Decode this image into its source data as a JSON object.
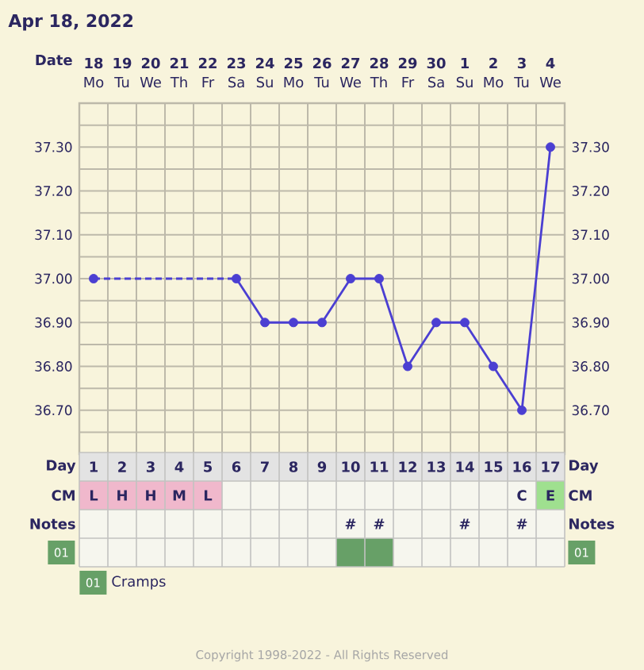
{
  "chart_data": {
    "type": "line",
    "title": "Apr 18, 2022",
    "categories": [
      "18",
      "19",
      "20",
      "21",
      "22",
      "23",
      "24",
      "25",
      "26",
      "27",
      "28",
      "29",
      "30",
      "1",
      "2",
      "3",
      "4"
    ],
    "series": [
      {
        "color": "#4b3fd2",
        "values": [
          37.0,
          null,
          null,
          null,
          null,
          37.0,
          36.9,
          36.9,
          36.9,
          37.0,
          37.0,
          36.8,
          36.9,
          36.9,
          36.8,
          36.7,
          37.3
        ]
      }
    ],
    "ylim": [
      36.6,
      37.4
    ],
    "yticks": [
      {
        "value": 36.65,
        "label": null
      },
      {
        "value": 36.7,
        "label": "36.70"
      },
      {
        "value": 36.75,
        "label": null
      },
      {
        "value": 36.8,
        "label": "36.80"
      },
      {
        "value": 36.85,
        "label": null
      },
      {
        "value": 36.9,
        "label": "36.90"
      },
      {
        "value": 36.95,
        "label": null
      },
      {
        "value": 37.0,
        "label": "37.00"
      },
      {
        "value": 37.05,
        "label": null
      },
      {
        "value": 37.1,
        "label": "37.10"
      },
      {
        "value": 37.15,
        "label": null
      },
      {
        "value": 37.2,
        "label": "37.20"
      },
      {
        "value": 37.25,
        "label": null
      },
      {
        "value": 37.3,
        "label": "37.30"
      },
      {
        "value": 37.35,
        "label": null
      }
    ],
    "y2lim": [
      36.6,
      37.4
    ],
    "y2ticks": [
      {
        "value": 36.7,
        "label": "36.70"
      },
      {
        "value": 36.8,
        "label": "36.80"
      },
      {
        "value": 36.9,
        "label": "36.90"
      },
      {
        "value": 37.0,
        "label": "37.00"
      },
      {
        "value": 37.1,
        "label": "37.10"
      },
      {
        "value": 37.2,
        "label": "37.20"
      },
      {
        "value": 37.3,
        "label": "37.30"
      }
    ],
    "grid": true,
    "marker": "circle",
    "line_style": "solid",
    "annotations": [
      "Date",
      "Day",
      "CM",
      "Notes",
      "01",
      "Day",
      "CM",
      "Notes",
      "01",
      "01",
      "Cramps",
      "Copyright 1998-2022 - All Rights Reserved",
      "Mo",
      "Tu",
      "We",
      "Th",
      "Fr",
      "Sa",
      "Su",
      "Mo",
      "Tu",
      "We",
      "Th",
      "Fr",
      "Sa",
      "Su",
      "Mo",
      "Tu",
      "We",
      "1",
      "2",
      "3",
      "4",
      "5",
      "6",
      "7",
      "8",
      "9",
      "10",
      "11",
      "12",
      "13",
      "14",
      "15",
      "16",
      "17",
      "L",
      "H",
      "H",
      "M",
      "L",
      "C",
      "E",
      "#",
      "#",
      "#",
      "#"
    ]
  }
}
